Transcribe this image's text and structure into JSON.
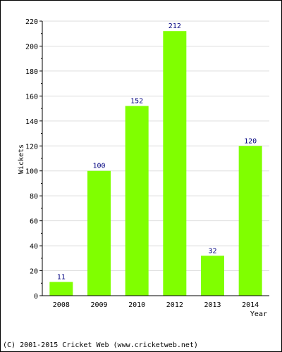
{
  "chart_data": {
    "type": "bar",
    "categories": [
      "2008",
      "2009",
      "2010",
      "2012",
      "2013",
      "2014"
    ],
    "values": [
      11,
      100,
      152,
      212,
      32,
      120
    ],
    "data_labels": [
      "11",
      "100",
      "152",
      "212",
      "32",
      "120"
    ],
    "ylabel": "Wickets",
    "xlabel": "Year",
    "ylim": [
      0,
      220
    ],
    "y_ticks": [
      0,
      20,
      40,
      60,
      80,
      100,
      120,
      140,
      160,
      180,
      200,
      220
    ],
    "grid": "horizontal",
    "bar_color": "#80ff00",
    "label_color": "#000080",
    "grid_color": "#dddddd"
  },
  "footer": {
    "copyright": "(C) 2001-2015 Cricket Web (www.cricketweb.net)"
  }
}
